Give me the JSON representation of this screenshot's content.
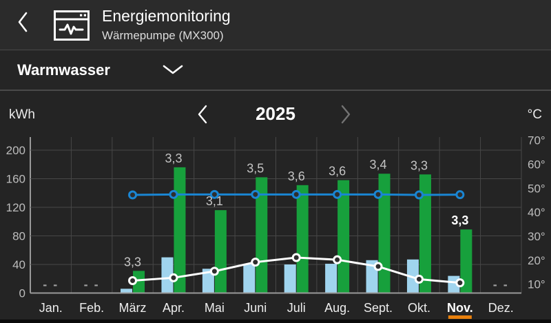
{
  "colors": {
    "accent_orange": "#E8800D",
    "bar_green": "#17A03C",
    "bar_lightblue": "#A0D4EE",
    "line_blue": "#1A86D3",
    "line_white": "#FFFFFF"
  },
  "header": {
    "title": "Energiemonitoring",
    "subtitle": "Wärmepumpe (MX300)"
  },
  "selector": {
    "value": "Warmwasser"
  },
  "year_nav": {
    "year": "2025"
  },
  "axis_units": {
    "left": "kWh",
    "right": "°C"
  },
  "chart_data": {
    "type": "combo-bar-line",
    "title": "2025",
    "categories": [
      "Jan.",
      "Feb.",
      "März",
      "Apr.",
      "Mai",
      "Juni",
      "Juli",
      "Aug.",
      "Sept.",
      "Okt.",
      "Nov.",
      "Dez."
    ],
    "highlighted_month": "Nov.",
    "highlighted_month_index": 10,
    "no_data_label": "- -",
    "no_data_month_indices": [
      0,
      1,
      11
    ],
    "grid": true,
    "legend_position": "none",
    "left_axis": {
      "unit": "kWh",
      "ticks": [
        200,
        160,
        120,
        80,
        40,
        0
      ],
      "range": [
        0,
        200
      ]
    },
    "right_axis": {
      "unit": "°C",
      "ticks": [
        70,
        60,
        50,
        40,
        30,
        20,
        10
      ],
      "tick_labels": [
        "70°",
        "60°",
        "50°",
        "40°",
        "30°",
        "20°",
        "10°"
      ]
    },
    "series": [
      {
        "name": "bars-light-blue-kwh",
        "type": "bar",
        "axis": "left",
        "color": "#A0D4EE",
        "values": [
          null,
          null,
          6,
          50,
          34,
          41,
          40,
          41,
          46,
          47,
          24,
          null
        ]
      },
      {
        "name": "bars-green-kwh",
        "type": "bar",
        "axis": "left",
        "color": "#17A03C",
        "values": [
          null,
          null,
          31,
          176,
          116,
          162,
          151,
          158,
          167,
          166,
          89,
          null
        ]
      },
      {
        "name": "line-blue-temperature",
        "type": "line",
        "axis": "right",
        "color": "#1A86D3",
        "values": [
          null,
          null,
          47.2,
          47.4,
          47.4,
          47.4,
          47.4,
          47.4,
          47.4,
          47.2,
          47.3,
          null
        ]
      },
      {
        "name": "line-white-temperature",
        "type": "line",
        "axis": "right",
        "color": "#FFFFFF",
        "values": [
          null,
          null,
          11.5,
          12.7,
          15.4,
          19.2,
          21.1,
          20.2,
          17.4,
          12.1,
          10.6,
          null
        ]
      }
    ],
    "bar_value_labels": [
      null,
      null,
      "3,3",
      "3,3",
      "3,1",
      "3,5",
      "3,6",
      "3,6",
      "3,4",
      "3,3",
      "3,3",
      null
    ]
  }
}
